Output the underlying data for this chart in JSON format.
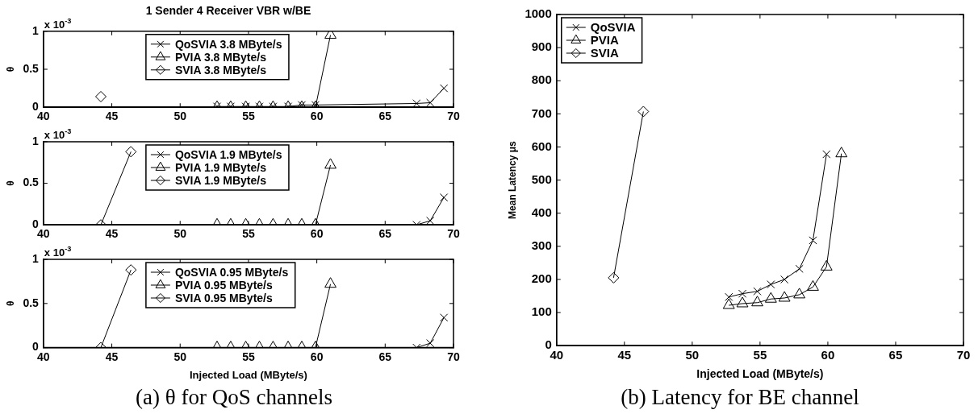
{
  "chart_data": [
    {
      "type": "line",
      "title": "1 Sender 4 Receiver VBR w/BE",
      "ylabel": "θ",
      "xlim": [
        40,
        70
      ],
      "xticks": [
        40,
        45,
        50,
        55,
        60,
        65,
        70
      ],
      "ylim": [
        0,
        1
      ],
      "yticks": [
        0,
        0.5,
        1
      ],
      "grid": false,
      "legend": "top",
      "line_style": "solid",
      "annotations": [
        "x 10$^{-3}$"
      ],
      "series": [
        {
          "name": "QoSVIA 3.8 MByte/s",
          "color": "#000000",
          "marker": "cross",
          "x": [
            52.7,
            53.7,
            54.8,
            55.8,
            56.8,
            57.9,
            58.9,
            59.9,
            67.3,
            68.3,
            69.3
          ],
          "values": [
            0.01,
            0.01,
            0.01,
            0.01,
            0.01,
            0.01,
            0.03,
            0.03,
            0.05,
            0.06,
            0.25
          ]
        },
        {
          "name": "PVIA 3.8 MByte/s",
          "color": "#000000",
          "marker": "triangle",
          "x": [
            52.7,
            53.7,
            54.8,
            55.8,
            56.8,
            57.9,
            58.9,
            59.9,
            61.0
          ],
          "values": [
            0,
            0,
            0,
            0,
            0,
            0,
            0,
            0,
            0.95
          ]
        },
        {
          "name": "SVIA 3.8 MByte/s",
          "color": "#000000",
          "marker": "diamond",
          "x": [
            44.2
          ],
          "values": [
            0.14
          ]
        }
      ]
    },
    {
      "type": "line",
      "ylabel": "θ",
      "xlim": [
        40,
        70
      ],
      "xticks": [
        40,
        45,
        50,
        55,
        60,
        65,
        70
      ],
      "ylim": [
        0,
        1
      ],
      "yticks": [
        0,
        0.5,
        1
      ],
      "grid": false,
      "legend": "top",
      "line_style": "solid",
      "annotations": [
        "x 10$^{-3}$"
      ],
      "series": [
        {
          "name": "QoSVIA 1.9 MByte/s",
          "color": "#000000",
          "marker": "cross",
          "x": [
            67.3,
            68.3,
            69.3
          ],
          "values": [
            0,
            0.05,
            0.33
          ]
        },
        {
          "name": "PVIA 1.9 MByte/s",
          "color": "#000000",
          "marker": "triangle",
          "x": [
            52.7,
            53.7,
            54.8,
            55.8,
            56.8,
            57.9,
            58.9,
            59.9,
            61.0
          ],
          "values": [
            0,
            0,
            0,
            0,
            0,
            0,
            0,
            0,
            0.72
          ]
        },
        {
          "name": "SVIA 1.9 MByte/s",
          "color": "#000000",
          "marker": "diamond",
          "x": [
            44.2,
            46.4
          ],
          "values": [
            0,
            0.88
          ]
        }
      ]
    },
    {
      "type": "line",
      "ylabel": "θ",
      "xlabel": "Injected Load (MByte/s)",
      "xlim": [
        40,
        70
      ],
      "xticks": [
        40,
        45,
        50,
        55,
        60,
        65,
        70
      ],
      "ylim": [
        0,
        1
      ],
      "yticks": [
        0,
        0.5,
        1
      ],
      "grid": false,
      "legend": "top",
      "line_style": "solid",
      "annotations": [
        "x 10$^{-3}$",
        "(a) θ for QoS channels"
      ],
      "series": [
        {
          "name": "QoSVIA 0.95 MByte/s",
          "color": "#000000",
          "marker": "cross",
          "x": [
            67.3,
            68.3,
            69.3
          ],
          "values": [
            0,
            0.05,
            0.34
          ]
        },
        {
          "name": "PVIA 0.95 MByte/s",
          "color": "#000000",
          "marker": "triangle",
          "x": [
            52.7,
            53.7,
            54.8,
            55.8,
            56.8,
            57.9,
            58.9,
            59.9,
            61.0
          ],
          "values": [
            0,
            0,
            0,
            0,
            0,
            0,
            0,
            0,
            0.72
          ]
        },
        {
          "name": "SVIA 0.95 MByte/s",
          "color": "#000000",
          "marker": "diamond",
          "x": [
            44.2,
            46.4
          ],
          "values": [
            0,
            0.88
          ]
        }
      ]
    },
    {
      "type": "line",
      "ylabel": "Mean Latency μs",
      "xlabel": "Injected Load (MByte/s)",
      "xlim": [
        40,
        70
      ],
      "xticks": [
        40,
        45,
        50,
        55,
        60,
        65,
        70
      ],
      "ylim": [
        0,
        1000
      ],
      "yticks": [
        0,
        100,
        200,
        300,
        400,
        500,
        600,
        700,
        800,
        900,
        1000
      ],
      "grid": false,
      "legend": "top left",
      "line_style": "solid",
      "annotations": [
        "(b) Latency for BE channel"
      ],
      "series": [
        {
          "name": "QoSVIA",
          "color": "#000000",
          "marker": "cross",
          "x": [
            52.7,
            53.7,
            54.8,
            55.8,
            56.8,
            57.9,
            58.9,
            59.9
          ],
          "values": [
            147,
            157,
            164,
            185,
            200,
            232,
            318,
            578
          ]
        },
        {
          "name": "PVIA",
          "color": "#000000",
          "marker": "triangle",
          "x": [
            52.7,
            53.7,
            54.8,
            55.8,
            56.8,
            57.9,
            58.9,
            59.9,
            61.0
          ],
          "values": [
            122,
            127,
            130,
            141,
            144,
            154,
            177,
            238,
            580
          ]
        },
        {
          "name": "SVIA",
          "color": "#000000",
          "marker": "diamond",
          "x": [
            44.2,
            46.4
          ],
          "values": [
            205,
            707
          ]
        }
      ]
    }
  ]
}
